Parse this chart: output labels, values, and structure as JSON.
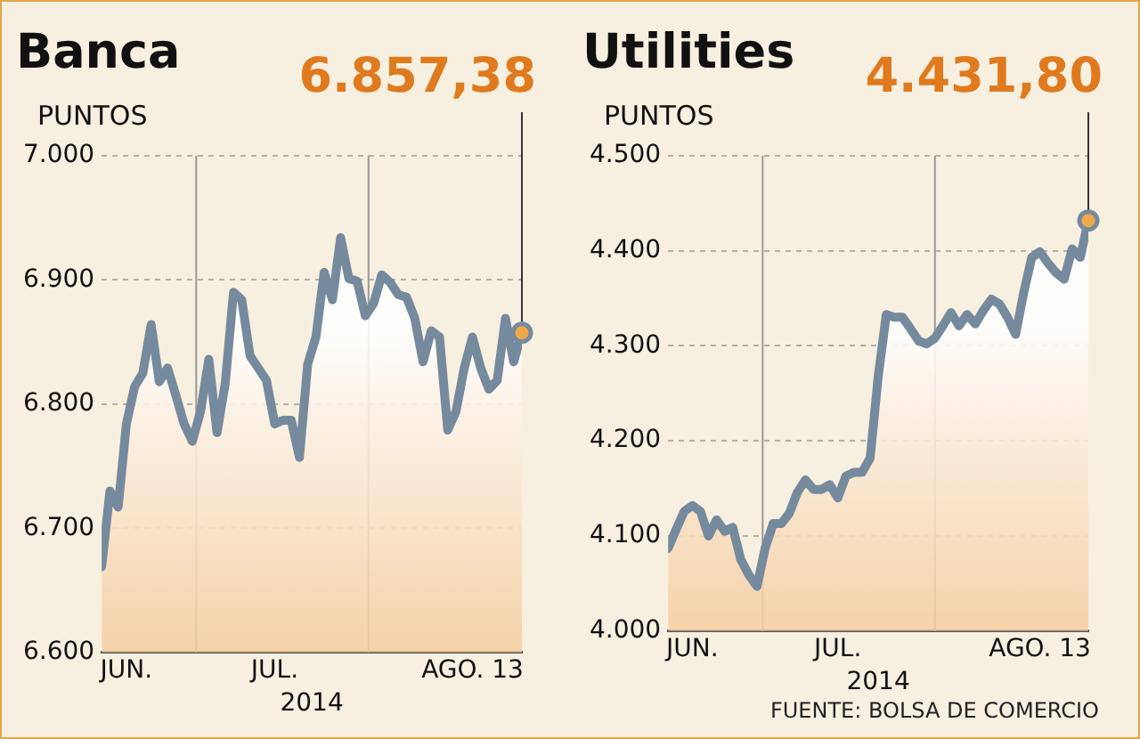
{
  "chart_data": [
    {
      "type": "area",
      "title": "Banca",
      "ylabel": "PUNTOS",
      "xlabel": "2014",
      "categories": [
        null,
        null,
        null,
        "JUN.",
        null,
        null,
        null,
        null,
        null,
        null,
        null,
        null,
        null,
        null,
        null,
        null,
        null,
        null,
        null,
        null,
        null,
        "JUL.",
        null,
        null,
        null,
        null,
        null,
        null,
        null,
        null,
        null,
        null,
        null,
        null,
        null,
        null,
        null,
        null,
        null,
        null,
        null,
        null,
        null,
        null,
        null,
        "AGO. 13",
        null,
        null,
        null,
        null,
        null,
        null
      ],
      "series": [
        {
          "color": "#768a9e",
          "values": [
            6669,
            6730,
            6717,
            6784,
            6814,
            6825,
            6864,
            6818,
            6829,
            6807,
            6784,
            6770,
            6794,
            6836,
            6777,
            6817,
            6890,
            6884,
            6839,
            6829,
            6819,
            6784,
            6787,
            6787,
            6757,
            6832,
            6854,
            6906,
            6884,
            6934,
            6901,
            6899,
            6871,
            6881,
            6904,
            6898,
            6888,
            6886,
            6869,
            6834,
            6859,
            6854,
            6779,
            6794,
            6829,
            6854,
            6829,
            6812,
            6819,
            6869,
            6834,
            6857.38
          ]
        }
      ],
      "ylim": [
        6600,
        7000
      ],
      "yticks": [
        {
          "value": 6600,
          "label": "6.600"
        },
        {
          "value": 6700,
          "label": "6.700"
        },
        {
          "value": 6800,
          "label": "6.800"
        },
        {
          "value": 6900,
          "label": "6.900"
        },
        {
          "value": 7000,
          "label": "7.000"
        }
      ],
      "grid": "y",
      "marker": "none",
      "annotations": [
        "6.857,38"
      ]
    },
    {
      "type": "area",
      "title": "Utilities",
      "ylabel": "PUNTOS",
      "xlabel": "2014",
      "categories": [
        null,
        null,
        null,
        "JUN.",
        null,
        null,
        null,
        null,
        null,
        null,
        null,
        null,
        null,
        null,
        null,
        null,
        null,
        null,
        null,
        null,
        null,
        "JUL.",
        null,
        null,
        null,
        null,
        null,
        null,
        null,
        null,
        null,
        null,
        null,
        null,
        null,
        null,
        null,
        null,
        null,
        null,
        null,
        null,
        null,
        null,
        null,
        null,
        "AGO. 13",
        null,
        null,
        null,
        null,
        null,
        null
      ],
      "series": [
        {
          "color": "#768a9e",
          "values": [
            4087,
            4107,
            4126,
            4132,
            4126,
            4100,
            4117,
            4105,
            4109,
            4075,
            4059,
            4047,
            4087,
            4113,
            4113,
            4124,
            4146,
            4159,
            4149,
            4149,
            4154,
            4140,
            4163,
            4167,
            4167,
            4182,
            4268,
            4333,
            4330,
            4330,
            4318,
            4305,
            4302,
            4308,
            4321,
            4335,
            4321,
            4333,
            4323,
            4337,
            4349,
            4344,
            4330,
            4312,
            4356,
            4393,
            4399,
            4387,
            4377,
            4370,
            4402,
            4393,
            4431.8
          ]
        }
      ],
      "ylim": [
        4000,
        4500
      ],
      "yticks": [
        {
          "value": 4000,
          "label": "4.000"
        },
        {
          "value": 4100,
          "label": "4.100"
        },
        {
          "value": 4200,
          "label": "4.200"
        },
        {
          "value": 4300,
          "label": "4.300"
        },
        {
          "value": 4400,
          "label": "4.400"
        },
        {
          "value": 4500,
          "label": "4.500"
        }
      ],
      "grid": "y",
      "marker": "none",
      "annotations": [
        "4.431,80",
        "FUENTE: BOLSA DE COMERCIO"
      ]
    }
  ]
}
